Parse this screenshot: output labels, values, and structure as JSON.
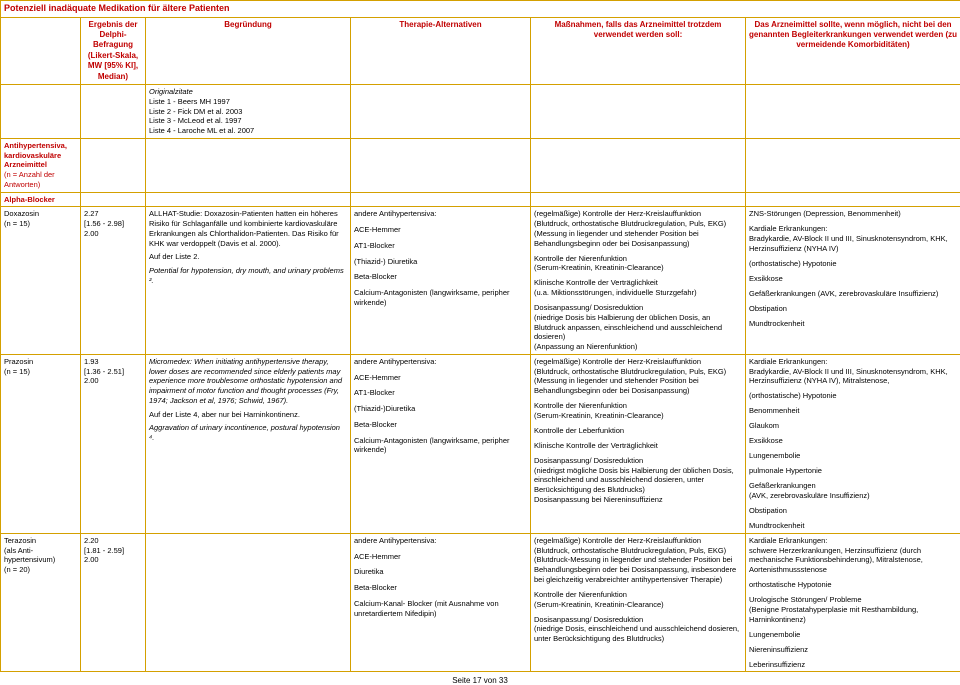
{
  "title": "Potenziell inadäquate Medikation für ältere Patienten",
  "headers": {
    "c0": "",
    "c1": "Ergebnis der Delphi-Befragung (Likert-Skala, MW [95% KI], Median)",
    "c2": "Begründung",
    "c3": "Therapie-Alternativen",
    "c4": "Maßnahmen, falls das Arzneimittel trotzdem verwendet werden soll:",
    "c5": "Das Arzneimittel sollte, wenn möglich, nicht bei den genannten Begleiterkrankungen verwendet werden (zu vermeidende Komorbiditäten)"
  },
  "originalzitate": {
    "heading": "Originalzitate",
    "lines": [
      "Liste 1 - Beers MH 1997",
      "Liste 2 - Fick DM et al. 2003",
      "Liste 3 - McLeod et al. 1997",
      "Liste 4 - Laroche ML et al. 2007"
    ]
  },
  "sectionA": "Antihypertensiva, kardiovaskuläre Arzneimittel",
  "sectionAnote": "(n = Anzahl der Antworten)",
  "alphaBlocker": "Alpha-Blocker",
  "r1": {
    "c0a": "Doxazosin",
    "c0b": "(n = 15)",
    "c1a": "2.27",
    "c1b": "[1.56 - 2.98]",
    "c1c": "2.00",
    "c2p1": "ALLHAT-Studie: Doxazosin-Patienten hatten ein höheres Risiko für Schlaganfälle und kombinierte kardiovaskuläre Erkrankungen als Chlorthalidon-Patienten. Das Risiko für KHK war verdoppelt (Davis et al. 2000).",
    "c2p2": "Auf der Liste 2.",
    "c2p3": "Potential for hypotension, dry mouth, and urinary problems ².",
    "c3": [
      "andere Antihypertensiva:",
      "ACE-Hemmer",
      "AT1-Blocker",
      "(Thiazid-) Diuretika",
      "Beta-Blocker",
      "Calcium-Antagonisten (langwirksame, peripher wirkende)"
    ],
    "c4": [
      "(regelmäßige) Kontrolle der Herz-Kreislauffunktion",
      "(Blutdruck, orthostatische Blutdruckregulation, Puls, EKG)",
      "(Messung in liegender und stehender Position bei Behandlungsbeginn oder bei Dosisanpassung)",
      "",
      "Kontrolle der Nierenfunktion",
      "(Serum-Kreatinin, Kreatinin-Clearance)",
      "",
      "Klinische Kontrolle der Verträglichkeit",
      "(u.a. Miktionsstörungen, individuelle Sturzgefahr)",
      "",
      "Dosisanpassung/ Dosisreduktion",
      "(niedrige Dosis bis Halbierung der üblichen Dosis, an Blutdruck anpassen, einschleichend und ausschleichend dosieren)",
      "(Anpassung an Nierenfunktion)"
    ],
    "c5": [
      "ZNS-Störungen (Depression, Benommenheit)",
      "",
      "Kardiale Erkrankungen:",
      "Bradykardie, AV-Block II und III, Sinusknotensyndrom, KHK, Herzinsuffizienz (NYHA IV)",
      "",
      "(orthostatische) Hypotonie",
      "",
      "Exsikkose",
      "",
      "Gefäßerkrankungen (AVK, zerebrovaskuläre Insuffizienz)",
      "",
      "Obstipation",
      "",
      "Mundtrockenheit"
    ]
  },
  "r2": {
    "c0a": "Prazosin",
    "c0b": "(n = 15)",
    "c1a": "1.93",
    "c1b": "[1.36 - 2.51]",
    "c1c": "2.00",
    "c2p1": "Micromedex: When initiating antihypertensive therapy, lower doses are recommended since elderly patients may experience more troublesome orthostatic hypotension and impairment of motor function and thought processes (Fry, 1974; Jackson et al, 1976; Schwid, 1967).",
    "c2p2": "Auf der Liste 4, aber nur bei Harninkontinenz.",
    "c2p3": "Aggravation of urinary incontinence, postural hypotension ⁴.",
    "c3": [
      "andere Antihypertensiva:",
      "ACE-Hemmer",
      "AT1-Blocker",
      "(Thiazid-)Diuretika",
      "Beta-Blocker",
      "Calcium-Antagonisten (langwirksame, peripher wirkende)"
    ],
    "c4": [
      "(regelmäßige) Kontrolle der Herz-Kreislauffunktion",
      "(Blutdruck, orthostatische Blutdruckregulation, Puls, EKG)",
      "(Messung in liegender und stehender Position bei Behandlungsbeginn oder bei Dosisanpassung)",
      "",
      "Kontrolle der Nierenfunktion",
      "(Serum-Kreatinin, Kreatinin-Clearance)",
      "",
      "Kontrolle der Leberfunktion",
      "",
      "Klinische Kontrolle der Verträglichkeit",
      "",
      "Dosisanpassung/ Dosisreduktion",
      "(niedrigst mögliche Dosis bis Halbierung der üblichen Dosis, einschleichend und ausschleichend dosieren, unter Berücksichtigung des Blutdrucks)",
      "Dosisanpassung bei Niereninsuffizienz"
    ],
    "c5": [
      "Kardiale Erkrankungen:",
      "Bradykardie, AV-Block II und III, Sinusknotensyndrom, KHK, Herzinsuffizienz (NYHA IV), Mitralstenose,",
      "",
      "(orthostatische) Hypotonie",
      "",
      "Benommenheit",
      "",
      "Glaukom",
      "",
      "Exsikkose",
      "",
      "Lungenembolie",
      "",
      "pulmonale Hypertonie",
      "",
      "Gefäßerkrankungen",
      "(AVK, zerebrovaskuläre Insuffizienz)",
      "",
      "Obstipation",
      "",
      "Mundtrockenheit"
    ]
  },
  "r3": {
    "c0a": "Terazosin",
    "c0b": "(als Anti-hypertensivum)",
    "c0c": "(n = 20)",
    "c1a": "2.20",
    "c1b": "[1.81 - 2.59]",
    "c1c": "2.00",
    "c3": [
      "andere Antihypertensiva:",
      "ACE-Hemmer",
      "Diuretika",
      "Beta-Blocker",
      "Calcium-Kanal- Blocker (mit Ausnahme von unretardiertem Nifedipin)"
    ],
    "c4": [
      "(regelmäßige) Kontrolle der Herz-Kreislauffunktion",
      "(Blutdruck, orthostatische Blutdruckregulation, Puls, EKG)",
      "(Blutdruck-Messung in liegender und stehender Position bei Behandlungsbeginn oder bei Dosisanpassung, insbesondere bei gleichzeitig verabreichter antihypertensiver Therapie)",
      "",
      "Kontrolle der Nierenfunktion",
      "(Serum-Kreatinin, Kreatinin-Clearance)",
      "",
      "Dosisanpassung/ Dosisreduktion",
      "(niedrige Dosis, einschleichend und ausschleichend dosieren, unter Berücksichtigung des Blutdrucks)"
    ],
    "c5": [
      "Kardiale Erkrankungen:",
      "schwere Herzerkrankungen, Herzinsuffizienz (durch mechanische Funktionsbehinderung), Mitralstenose, Aortenisthmussstenose",
      "",
      "orthostatische Hypotonie",
      "",
      "Urologische Störungen/ Probleme",
      "(Benigne Prostatahyperplasie mit Restharnbildung, Harninkontinenz)",
      "",
      "Lungenembolie",
      "",
      "Niereninsuffizienz",
      "",
      "Leberinsuffizienz"
    ]
  },
  "footer": "Seite 17 von 33"
}
